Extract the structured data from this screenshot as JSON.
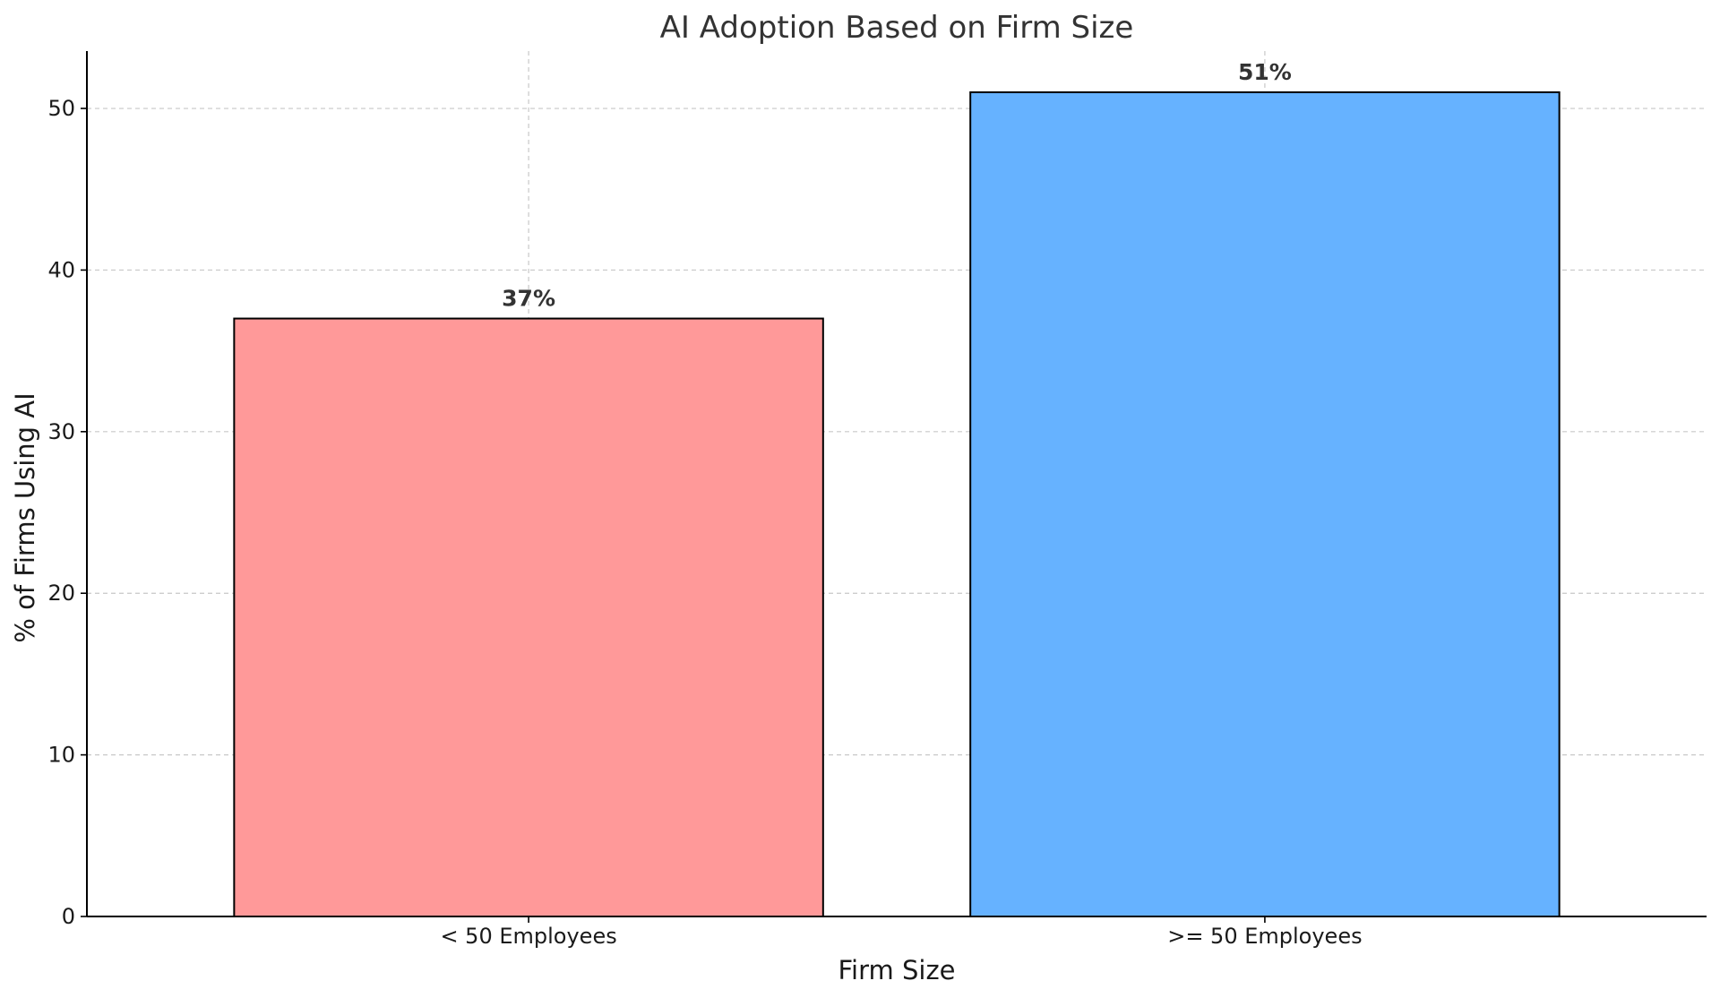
{
  "chart_data": {
    "type": "bar",
    "title": "AI Adoption Based on Firm Size",
    "xlabel": "Firm Size",
    "ylabel": "% of Firms Using AI",
    "categories": [
      "< 50 Employees",
      ">= 50 Employees"
    ],
    "values": [
      37,
      51
    ],
    "data_labels": [
      "37%",
      "51%"
    ],
    "colors": [
      "#ff9999",
      "#66b2ff"
    ],
    "edge_color": "#000000",
    "ylim": [
      0,
      53.55
    ],
    "yticks": [
      0,
      10,
      20,
      30,
      40,
      50
    ],
    "grid": true,
    "legend": null
  }
}
